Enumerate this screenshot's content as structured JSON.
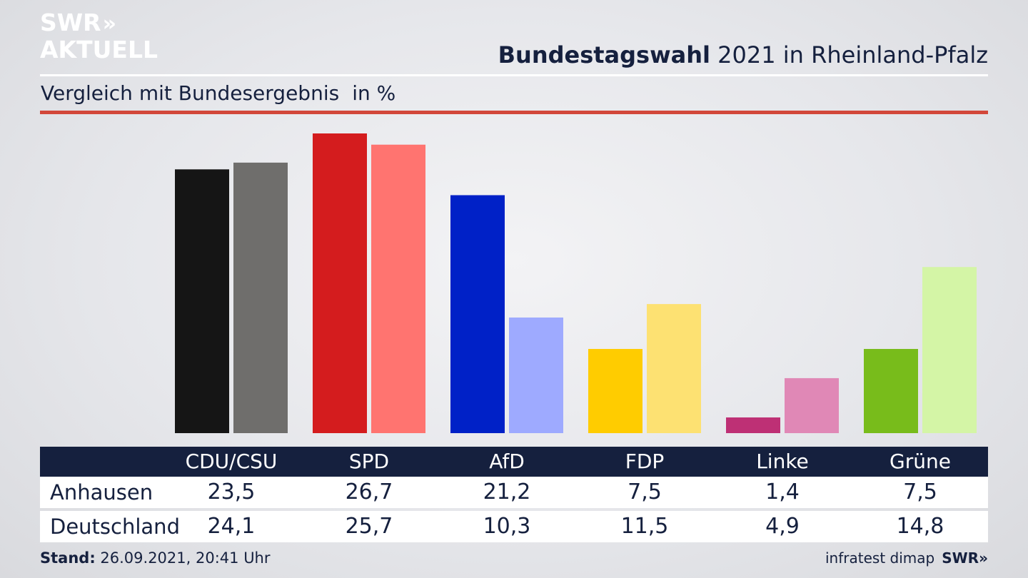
{
  "logo": {
    "line1": "SWR",
    "line1_chevrons": "»",
    "line2": "AKTUELL"
  },
  "header": {
    "title_bold": "Bundestagswahl",
    "title_rest": "2021 in Rheinland-Pfalz",
    "subtitle": "Vergleich mit Bundesergebnis",
    "unit": "in %"
  },
  "chart_data": {
    "type": "bar",
    "categories": [
      "CDU/CSU",
      "SPD",
      "AfD",
      "FDP",
      "Linke",
      "Grüne"
    ],
    "series": [
      {
        "name": "Anhausen",
        "values": [
          23.5,
          26.7,
          21.2,
          7.5,
          1.4,
          7.5
        ]
      },
      {
        "name": "Deutschland",
        "values": [
          24.1,
          25.7,
          10.3,
          11.5,
          4.9,
          14.8
        ]
      }
    ],
    "colors": {
      "Anhausen": [
        "#151515",
        "#d41c1e",
        "#0021c7",
        "#ffcc00",
        "#be3075",
        "#78bc1b"
      ],
      "Deutschland": [
        "#6f6e6c",
        "#ff7470",
        "#9eaaff",
        "#fde172",
        "#e088b6",
        "#d4f5a6"
      ]
    },
    "ylim": [
      0,
      26.7
    ],
    "grid": false
  },
  "table": {
    "headers": [
      "CDU/CSU",
      "SPD",
      "AfD",
      "FDP",
      "Linke",
      "Grüne"
    ],
    "rows": [
      {
        "label": "Anhausen",
        "values": [
          "23,5",
          "26,7",
          "21,2",
          "7,5",
          "1,4",
          "7,5"
        ]
      },
      {
        "label": "Deutschland",
        "values": [
          "24,1",
          "25,7",
          "10,3",
          "11,5",
          "4,9",
          "14,8"
        ]
      }
    ]
  },
  "footer": {
    "stand_label": "Stand:",
    "stand_value": "26.09.2021, 20:41 Uhr",
    "source": "infratest dimap",
    "brand": "SWR»"
  },
  "colors": {
    "navy": "#15203e",
    "accent_red": "#d2473a"
  }
}
